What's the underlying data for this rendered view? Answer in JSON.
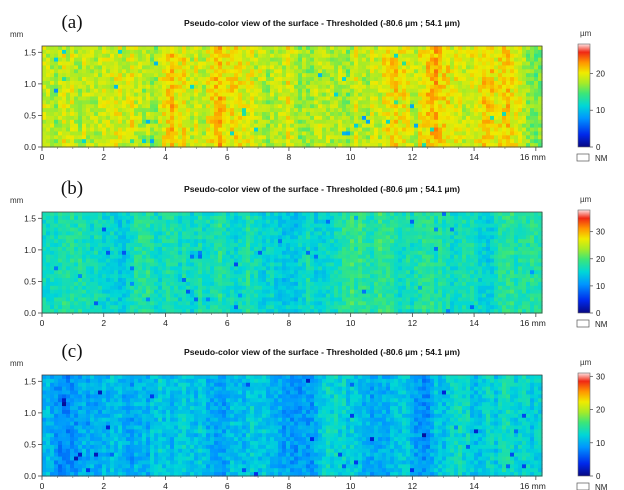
{
  "chart_data": [
    {
      "type": "heatmap",
      "panel_label": "(a)",
      "title": "Pseudo-color view of the surface - Thresholded (-80.6 µm ; 54.1 µm)",
      "x_unit": "mm",
      "y_unit": "mm",
      "xlim": [
        0,
        16.2
      ],
      "ylim": [
        0,
        1.6
      ],
      "x_ticks": [
        0,
        2,
        4,
        6,
        8,
        10,
        12,
        14,
        16
      ],
      "x_tick_labels": [
        "0",
        "2",
        "4",
        "6",
        "8",
        "10",
        "12",
        "14",
        "16 mm"
      ],
      "y_ticks": [
        0.0,
        0.5,
        1.0,
        1.5
      ],
      "y_tick_labels": [
        "0.0",
        "0.5",
        "1.0",
        "1.5"
      ],
      "colorbar": {
        "unit": "µm",
        "min": 0,
        "max": 28,
        "ticks": [
          0,
          10,
          20
        ],
        "nm_label": "NM"
      },
      "surface": {
        "mean_um": 19.5,
        "spread_um": 2.6,
        "seed": 11
      }
    },
    {
      "type": "heatmap",
      "panel_label": "(b)",
      "title": "Pseudo-color view of the surface - Thresholded (-80.6 µm ; 54.1 µm)",
      "x_unit": "mm",
      "y_unit": "mm",
      "xlim": [
        0,
        16.2
      ],
      "ylim": [
        0,
        1.6
      ],
      "x_ticks": [
        0,
        2,
        4,
        6,
        8,
        10,
        12,
        14,
        16
      ],
      "x_tick_labels": [
        "0",
        "2",
        "4",
        "6",
        "8",
        "10",
        "12",
        "14",
        "16 mm"
      ],
      "y_ticks": [
        0.0,
        0.5,
        1.0,
        1.5
      ],
      "y_tick_labels": [
        "0.0",
        "0.5",
        "1.0",
        "1.5"
      ],
      "colorbar": {
        "unit": "µm",
        "min": 0,
        "max": 38,
        "ticks": [
          0,
          10,
          20,
          30
        ],
        "nm_label": "NM"
      },
      "surface": {
        "mean_um": 17.0,
        "spread_um": 2.5,
        "seed": 23
      }
    },
    {
      "type": "heatmap",
      "panel_label": "(c)",
      "title": "Pseudo-color view of the surface - Thresholded (-80.6 µm ; 54.1 µm)",
      "x_unit": "mm",
      "y_unit": "mm",
      "xlim": [
        0,
        16.2
      ],
      "ylim": [
        0,
        1.6
      ],
      "x_ticks": [
        0,
        2,
        4,
        6,
        8,
        10,
        12,
        14,
        16
      ],
      "x_tick_labels": [
        "0",
        "2",
        "4",
        "6",
        "8",
        "10",
        "12",
        "14",
        "16 mm"
      ],
      "y_ticks": [
        0.0,
        0.5,
        1.0,
        1.5
      ],
      "y_tick_labels": [
        "0.0",
        "0.5",
        "1.0",
        "1.5"
      ],
      "colorbar": {
        "unit": "µm",
        "min": 0,
        "max": 31,
        "ticks": [
          0,
          10,
          20,
          30
        ],
        "nm_label": "NM"
      },
      "surface": {
        "mean_um": 11.0,
        "spread_um": 2.2,
        "seed": 37
      }
    }
  ]
}
